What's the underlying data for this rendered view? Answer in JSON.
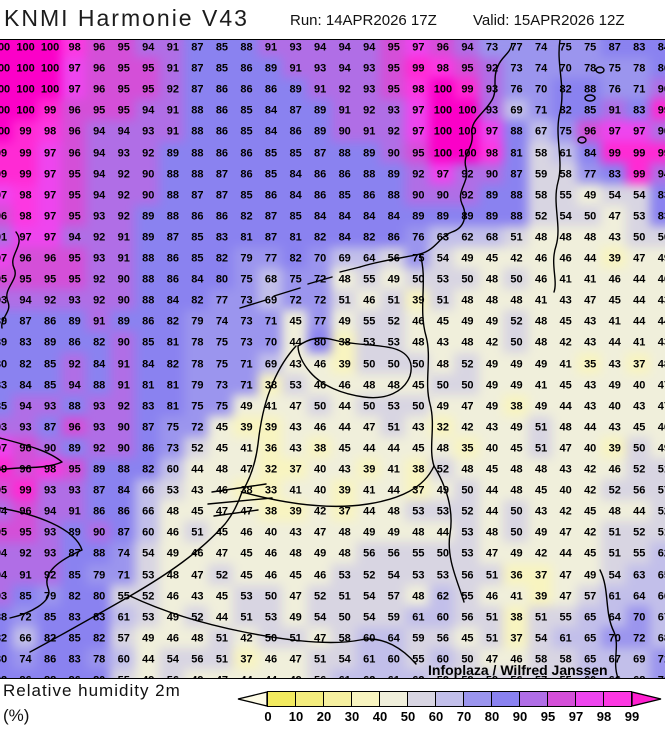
{
  "header": {
    "title": "KNMI Harmonie V43",
    "run": "Run: 14APR2026 17Z",
    "valid": "Valid: 15APR2026 12Z"
  },
  "map": {
    "attribution": "Infoplaza / Wilfred Janssen"
  },
  "footer": {
    "label": "Relative humidity 2m",
    "unit": "(%)"
  },
  "colorbar": {
    "ticks": [
      "0",
      "10",
      "20",
      "30",
      "40",
      "50",
      "60",
      "70",
      "80",
      "90",
      "95",
      "97",
      "98",
      "99"
    ],
    "segment_colors": [
      "#f2ea5f",
      "#f4ed7e",
      "#f6f0a0",
      "#f8f4c0",
      "#f0efdb",
      "#d8d5e2",
      "#c2bfea",
      "#9b95ee",
      "#8a82f0",
      "#b06ee6",
      "#d44fd8",
      "#ee45ee",
      "#fc38e2"
    ],
    "left_arrow_color": "#fdfbe6",
    "right_arrow_color": "#ff1fd0"
  },
  "chart_data": {
    "type": "heatmap",
    "variable": "Relative humidity 2m",
    "unit": "%",
    "grid_size": {
      "cols": 28,
      "rows": 31
    },
    "value_color_bands": [
      {
        "min": 100,
        "color": "#fb00c8"
      },
      {
        "min": 99,
        "color": "#ff2ad4"
      },
      {
        "min": 98,
        "color": "#fc38e2"
      },
      {
        "min": 97,
        "color": "#ee45ee"
      },
      {
        "min": 95,
        "color": "#d44fd8"
      },
      {
        "min": 90,
        "color": "#b06ee6"
      },
      {
        "min": 80,
        "color": "#8a82f0"
      },
      {
        "min": 70,
        "color": "#9b95ee"
      },
      {
        "min": 60,
        "color": "#c2bfea"
      },
      {
        "min": 50,
        "color": "#d8d5e2"
      },
      {
        "min": 40,
        "color": "#f0efdb"
      },
      {
        "min": 30,
        "color": "#f8f4c0"
      },
      {
        "min": 0,
        "color": "#f6f0a0"
      }
    ],
    "rows": [
      [
        100,
        100,
        100,
        98,
        96,
        95,
        94,
        91,
        87,
        85,
        88,
        91,
        93,
        94,
        94,
        94,
        95,
        97,
        96,
        94,
        73,
        77,
        74,
        75,
        75,
        87,
        83,
        84
      ],
      [
        100,
        100,
        100,
        97,
        96,
        95,
        95,
        91,
        87,
        85,
        86,
        89,
        91,
        93,
        94,
        93,
        95,
        99,
        98,
        95,
        92,
        73,
        74,
        70,
        78,
        75,
        78,
        86
      ],
      [
        100,
        100,
        100,
        97,
        96,
        95,
        95,
        92,
        87,
        86,
        86,
        86,
        89,
        91,
        92,
        93,
        95,
        98,
        100,
        99,
        93,
        76,
        70,
        82,
        88,
        76,
        71,
        90
      ],
      [
        100,
        100,
        99,
        96,
        95,
        95,
        94,
        91,
        88,
        86,
        85,
        84,
        87,
        89,
        91,
        92,
        93,
        97,
        100,
        100,
        93,
        69,
        71,
        82,
        85,
        91,
        83,
        99
      ],
      [
        100,
        99,
        98,
        96,
        94,
        94,
        93,
        91,
        88,
        86,
        85,
        84,
        86,
        89,
        90,
        91,
        92,
        97,
        100,
        100,
        97,
        88,
        67,
        75,
        96,
        97,
        97,
        90
      ],
      [
        99,
        99,
        97,
        96,
        94,
        93,
        92,
        89,
        88,
        86,
        86,
        85,
        85,
        87,
        88,
        89,
        90,
        95,
        100,
        100,
        98,
        81,
        58,
        61,
        84,
        99,
        99,
        99
      ],
      [
        99,
        99,
        97,
        95,
        94,
        92,
        90,
        88,
        88,
        87,
        86,
        85,
        84,
        86,
        86,
        88,
        89,
        92,
        97,
        92,
        90,
        87,
        59,
        58,
        77,
        83,
        99,
        94
      ],
      [
        97,
        98,
        97,
        95,
        94,
        92,
        90,
        88,
        87,
        87,
        85,
        86,
        84,
        86,
        85,
        86,
        88,
        90,
        90,
        92,
        89,
        88,
        58,
        55,
        49,
        54,
        54,
        83
      ],
      [
        96,
        98,
        97,
        95,
        93,
        92,
        89,
        88,
        86,
        86,
        82,
        87,
        85,
        84,
        84,
        84,
        84,
        89,
        89,
        89,
        89,
        88,
        52,
        54,
        50,
        47,
        53,
        83
      ],
      [
        91,
        97,
        97,
        94,
        92,
        91,
        89,
        87,
        85,
        83,
        81,
        87,
        81,
        82,
        84,
        82,
        86,
        76,
        63,
        62,
        68,
        51,
        48,
        48,
        48,
        43,
        50,
        50
      ],
      [
        97,
        96,
        96,
        95,
        93,
        91,
        88,
        86,
        85,
        82,
        79,
        77,
        82,
        70,
        69,
        64,
        56,
        75,
        54,
        49,
        45,
        42,
        46,
        46,
        44,
        39,
        47,
        49
      ],
      [
        95,
        95,
        95,
        95,
        92,
        90,
        88,
        86,
        84,
        80,
        75,
        68,
        75,
        72,
        48,
        55,
        49,
        50,
        53,
        50,
        48,
        50,
        46,
        41,
        41,
        46,
        44,
        46
      ],
      [
        93,
        94,
        92,
        93,
        92,
        90,
        88,
        84,
        82,
        77,
        73,
        69,
        72,
        72,
        51,
        46,
        51,
        39,
        51,
        48,
        48,
        48,
        41,
        43,
        47,
        45,
        44,
        43
      ],
      [
        89,
        87,
        86,
        89,
        91,
        89,
        86,
        82,
        79,
        74,
        73,
        71,
        45,
        77,
        49,
        55,
        52,
        46,
        45,
        49,
        49,
        52,
        48,
        45,
        43,
        41,
        44,
        44
      ],
      [
        89,
        83,
        89,
        86,
        82,
        90,
        85,
        81,
        78,
        75,
        73,
        70,
        44,
        80,
        38,
        53,
        53,
        48,
        43,
        48,
        42,
        50,
        48,
        42,
        43,
        44,
        41,
        43
      ],
      [
        80,
        82,
        85,
        92,
        84,
        91,
        84,
        82,
        78,
        75,
        71,
        69,
        43,
        46,
        39,
        50,
        50,
        50,
        48,
        52,
        49,
        49,
        49,
        41,
        35,
        43,
        37,
        48
      ],
      [
        83,
        84,
        85,
        94,
        88,
        91,
        81,
        81,
        79,
        73,
        71,
        38,
        53,
        46,
        46,
        48,
        48,
        45,
        50,
        50,
        49,
        49,
        41,
        45,
        43,
        49,
        40,
        47
      ],
      [
        85,
        94,
        93,
        88,
        93,
        92,
        83,
        81,
        75,
        75,
        49,
        41,
        47,
        50,
        44,
        50,
        53,
        50,
        49,
        47,
        49,
        38,
        49,
        44,
        43,
        40,
        43,
        47
      ],
      [
        93,
        93,
        87,
        96,
        93,
        90,
        87,
        75,
        72,
        45,
        39,
        39,
        43,
        46,
        44,
        47,
        51,
        43,
        32,
        42,
        43,
        49,
        51,
        48,
        44,
        43,
        45,
        46
      ],
      [
        97,
        96,
        90,
        89,
        92,
        90,
        86,
        73,
        52,
        45,
        41,
        36,
        43,
        38,
        45,
        44,
        44,
        45,
        48,
        35,
        40,
        45,
        51,
        47,
        40,
        39,
        50,
        49
      ],
      [
        99,
        96,
        98,
        95,
        89,
        88,
        82,
        60,
        44,
        48,
        47,
        32,
        37,
        40,
        43,
        39,
        41,
        38,
        52,
        48,
        45,
        48,
        48,
        43,
        42,
        46,
        52,
        51
      ],
      [
        95,
        99,
        93,
        93,
        87,
        84,
        66,
        53,
        43,
        46,
        38,
        33,
        41,
        40,
        39,
        41,
        44,
        37,
        49,
        50,
        44,
        48,
        45,
        40,
        42,
        52,
        56,
        57
      ],
      [
        94,
        96,
        94,
        91,
        86,
        86,
        66,
        48,
        45,
        47,
        47,
        38,
        39,
        42,
        37,
        44,
        48,
        53,
        53,
        52,
        44,
        50,
        43,
        42,
        45,
        48,
        44,
        52
      ],
      [
        95,
        95,
        93,
        89,
        90,
        87,
        60,
        46,
        51,
        45,
        46,
        40,
        43,
        47,
        48,
        49,
        49,
        48,
        44,
        53,
        48,
        50,
        49,
        47,
        42,
        51,
        52,
        51
      ],
      [
        94,
        92,
        93,
        87,
        88,
        74,
        54,
        49,
        46,
        47,
        45,
        46,
        48,
        49,
        48,
        56,
        56,
        55,
        50,
        53,
        47,
        49,
        42,
        44,
        45,
        51,
        55,
        62
      ],
      [
        94,
        91,
        92,
        85,
        79,
        71,
        53,
        48,
        47,
        52,
        45,
        46,
        45,
        46,
        53,
        52,
        54,
        53,
        53,
        56,
        51,
        36,
        37,
        47,
        49,
        54,
        63,
        65
      ],
      [
        93,
        85,
        79,
        82,
        80,
        55,
        52,
        46,
        43,
        45,
        53,
        50,
        47,
        52,
        51,
        54,
        57,
        48,
        62,
        55,
        46,
        41,
        39,
        47,
        57,
        61,
        64,
        66
      ],
      [
        88,
        72,
        85,
        83,
        83,
        61,
        53,
        49,
        52,
        44,
        51,
        53,
        49,
        54,
        50,
        54,
        59,
        61,
        60,
        56,
        51,
        38,
        51,
        55,
        65,
        64,
        70,
        67
      ],
      [
        82,
        66,
        82,
        85,
        82,
        57,
        49,
        46,
        48,
        51,
        42,
        50,
        51,
        47,
        58,
        60,
        64,
        59,
        56,
        45,
        51,
        37,
        54,
        61,
        65,
        70,
        72,
        68
      ],
      [
        80,
        74,
        86,
        83,
        78,
        60,
        44,
        54,
        56,
        51,
        37,
        46,
        47,
        51,
        54,
        61,
        60,
        55,
        60,
        50,
        47,
        46,
        58,
        58,
        65,
        67,
        69,
        71
      ],
      [
        82,
        86,
        88,
        86,
        80,
        55,
        49,
        56,
        49,
        47,
        44,
        44,
        49,
        56,
        61,
        62,
        61,
        62,
        59,
        58,
        59,
        56,
        57,
        55,
        60,
        66,
        68,
        70
      ]
    ]
  }
}
